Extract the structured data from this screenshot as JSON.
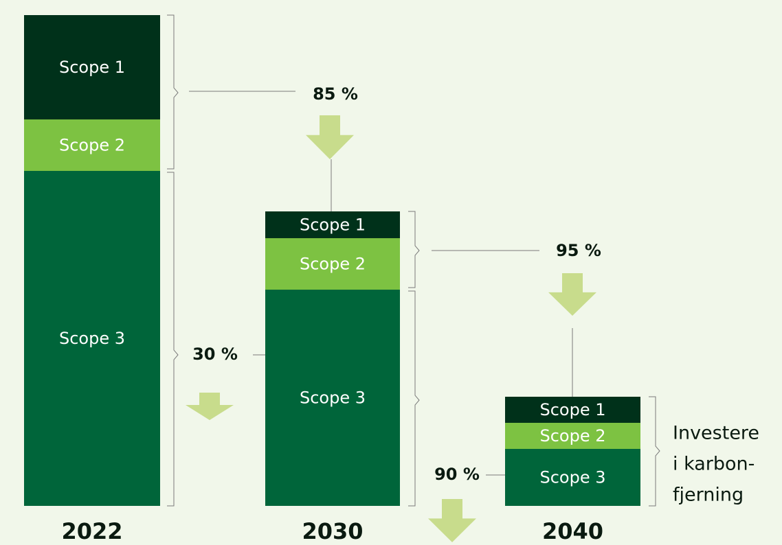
{
  "columns": [
    {
      "year": "2022",
      "segments": [
        "Scope 1",
        "Scope 2",
        "Scope 3"
      ]
    },
    {
      "year": "2030",
      "segments": [
        "Scope 1",
        "Scope 2",
        "Scope 3"
      ]
    },
    {
      "year": "2040",
      "segments": [
        "Scope 1",
        "Scope 2",
        "Scope 3"
      ]
    }
  ],
  "reductions": [
    "85 %",
    "30 %",
    "95 %",
    "90 %"
  ],
  "note": [
    "Investere",
    "i karbon-",
    "fjerning"
  ]
}
